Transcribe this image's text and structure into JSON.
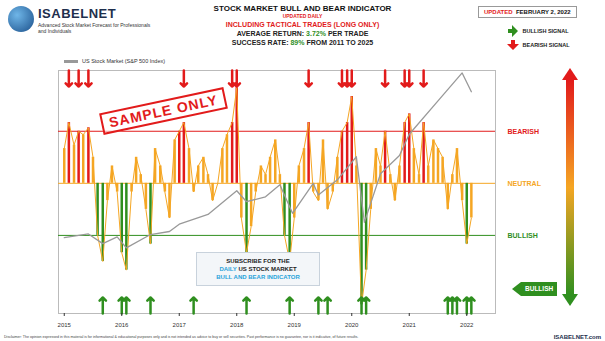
{
  "header": {
    "logo": "ISABELNET",
    "tagline": "Advanced Stock Market Forecast for Professionals and Individuals",
    "updated": {
      "label": "UPDATED",
      "date": "FEBRUARY 2, 2022"
    },
    "lines": [
      [
        {
          "text": "INCLUDING TACTICAL TRADES (LONG ONLY)",
          "color": "#e21b1b"
        }
      ],
      [
        {
          "text": "AVERAGE RETURN: ",
          "color": "#222222"
        },
        {
          "text": "3.72%",
          "color": "#2f8f1f"
        },
        {
          "text": " PER TRADE",
          "color": "#222222"
        }
      ],
      [
        {
          "text": "SUCCESS RATE: ",
          "color": "#222222"
        },
        {
          "text": "89%",
          "color": "#2f8f1f"
        },
        {
          "text": " FROM 2011 TO 2025",
          "color": "#222222"
        }
      ]
    ],
    "stamp": "SAMPLE ONLY",
    "subscribe": [
      [
        {
          "text": "SUBSCRIBE FOR THE",
          "color": "#222222"
        }
      ],
      [
        {
          "text": "DAILY",
          "color": "#29a3d9"
        },
        {
          "text": " US STOCK MARKET",
          "color": "#222222"
        }
      ],
      [
        {
          "text": "BULL AND BEAR INDICATOR",
          "color": "#29a3d9"
        }
      ]
    ],
    "signal_box": {
      "label": "BULLISH",
      "color": "#2f8f1f"
    },
    "disclaimer": "Disclaimer: The opinion expressed in this material is for informational & educational purposes only and is not intended as advice to buy or sell securities. Past performance is no guarantee, nor is it indicative, of future results.",
    "site": "ISABELNET.com"
  },
  "chart_data": {
    "type": "line",
    "title": "STOCK MARKET BULL AND BEAR INDICATOR",
    "subtitle": "UPDATED DAILY",
    "x": [
      2015.0,
      2015.08,
      2015.17,
      2015.25,
      2015.33,
      2015.42,
      2015.5,
      2015.58,
      2015.67,
      2015.75,
      2015.83,
      2015.92,
      2016.0,
      2016.08,
      2016.17,
      2016.25,
      2016.33,
      2016.42,
      2016.5,
      2016.58,
      2016.67,
      2016.75,
      2016.83,
      2016.92,
      2017.0,
      2017.08,
      2017.17,
      2017.25,
      2017.33,
      2017.42,
      2017.5,
      2017.58,
      2017.67,
      2017.75,
      2017.83,
      2017.92,
      2018.0,
      2018.08,
      2018.17,
      2018.25,
      2018.33,
      2018.42,
      2018.5,
      2018.58,
      2018.67,
      2018.75,
      2018.83,
      2018.92,
      2019.0,
      2019.08,
      2019.17,
      2019.25,
      2019.33,
      2019.42,
      2019.5,
      2019.58,
      2019.67,
      2019.75,
      2019.83,
      2019.92,
      2020.0,
      2020.08,
      2020.17,
      2020.25,
      2020.33,
      2020.42,
      2020.5,
      2020.58,
      2020.67,
      2020.75,
      2020.83,
      2020.92,
      2021.0,
      2021.08,
      2021.17,
      2021.25,
      2021.33,
      2021.42,
      2021.5,
      2021.58,
      2021.67,
      2021.75,
      2021.83,
      2021.92,
      2022.0,
      2022.08
    ],
    "series": [
      {
        "color": "#f5a623",
        "values": [
          70,
          85,
          72,
          80,
          78,
          82,
          65,
          20,
          5,
          40,
          60,
          45,
          10,
          0,
          45,
          65,
          55,
          35,
          15,
          70,
          60,
          45,
          30,
          75,
          80,
          85,
          70,
          45,
          60,
          65,
          55,
          40,
          50,
          70,
          78,
          85,
          105,
          30,
          10,
          25,
          45,
          60,
          55,
          65,
          75,
          55,
          20,
          5,
          30,
          60,
          70,
          85,
          45,
          40,
          75,
          35,
          45,
          65,
          80,
          85,
          100,
          60,
          -20,
          0,
          35,
          70,
          60,
          80,
          55,
          40,
          60,
          85,
          90,
          70,
          55,
          85,
          60,
          75,
          70,
          65,
          35,
          55,
          70,
          40,
          15,
          30
        ]
      },
      {
        "name": "US Stock Market (S&P 500 Index)",
        "color": "#999999",
        "axis": "y2",
        "x": [
          2015.0,
          2015.42,
          2015.67,
          2015.92,
          2016.08,
          2016.5,
          2016.83,
          2017.0,
          2017.5,
          2018.0,
          2018.17,
          2018.5,
          2018.75,
          2018.97,
          2019.33,
          2019.42,
          2019.75,
          2020.08,
          2020.22,
          2020.5,
          2020.83,
          2021.0,
          2021.5,
          2021.92,
          2022.08
        ],
        "values": [
          2050,
          2110,
          1950,
          2060,
          1880,
          2100,
          2150,
          2270,
          2430,
          2820,
          2640,
          2720,
          2920,
          2450,
          2940,
          2750,
          3000,
          3380,
          2300,
          3100,
          3400,
          3750,
          4300,
          4760,
          4450
        ]
      }
    ],
    "levels": [
      {
        "label": "BEARISH",
        "value": 80,
        "color": "#e21b1b"
      },
      {
        "label": "NEUTRAL",
        "value": 50,
        "color": "#f5a623"
      },
      {
        "label": "BULLISH",
        "value": 20,
        "color": "#2f8f1f"
      }
    ],
    "bearish_signals": {
      "label": "BEARISH SIGNAL",
      "color": "#e21b1b",
      "x": [
        2015.08,
        2015.25,
        2015.42,
        2017.08,
        2017.92,
        2018.0,
        2019.25,
        2019.83,
        2019.92,
        2020.0,
        2020.58,
        2020.92,
        2021.0,
        2021.25
      ]
    },
    "bullish_signals": {
      "label": "BULLISH SIGNAL",
      "color": "#2f8f1f",
      "x": [
        2015.67,
        2016.0,
        2016.08,
        2016.5,
        2017.25,
        2018.17,
        2018.92,
        2019.42,
        2019.58,
        2020.17,
        2020.25,
        2021.67,
        2021.75,
        2021.83,
        2022.0,
        2022.08
      ]
    },
    "xlim": [
      2014.9,
      2022.5
    ],
    "xticks": [
      2015,
      2016,
      2017,
      2018,
      2019,
      2020,
      2021,
      2022
    ],
    "ylim": [
      -25,
      115
    ],
    "y2lim": [
      800,
      4800
    ],
    "tick_labels": "x",
    "grid": false,
    "legend": "top-left"
  }
}
